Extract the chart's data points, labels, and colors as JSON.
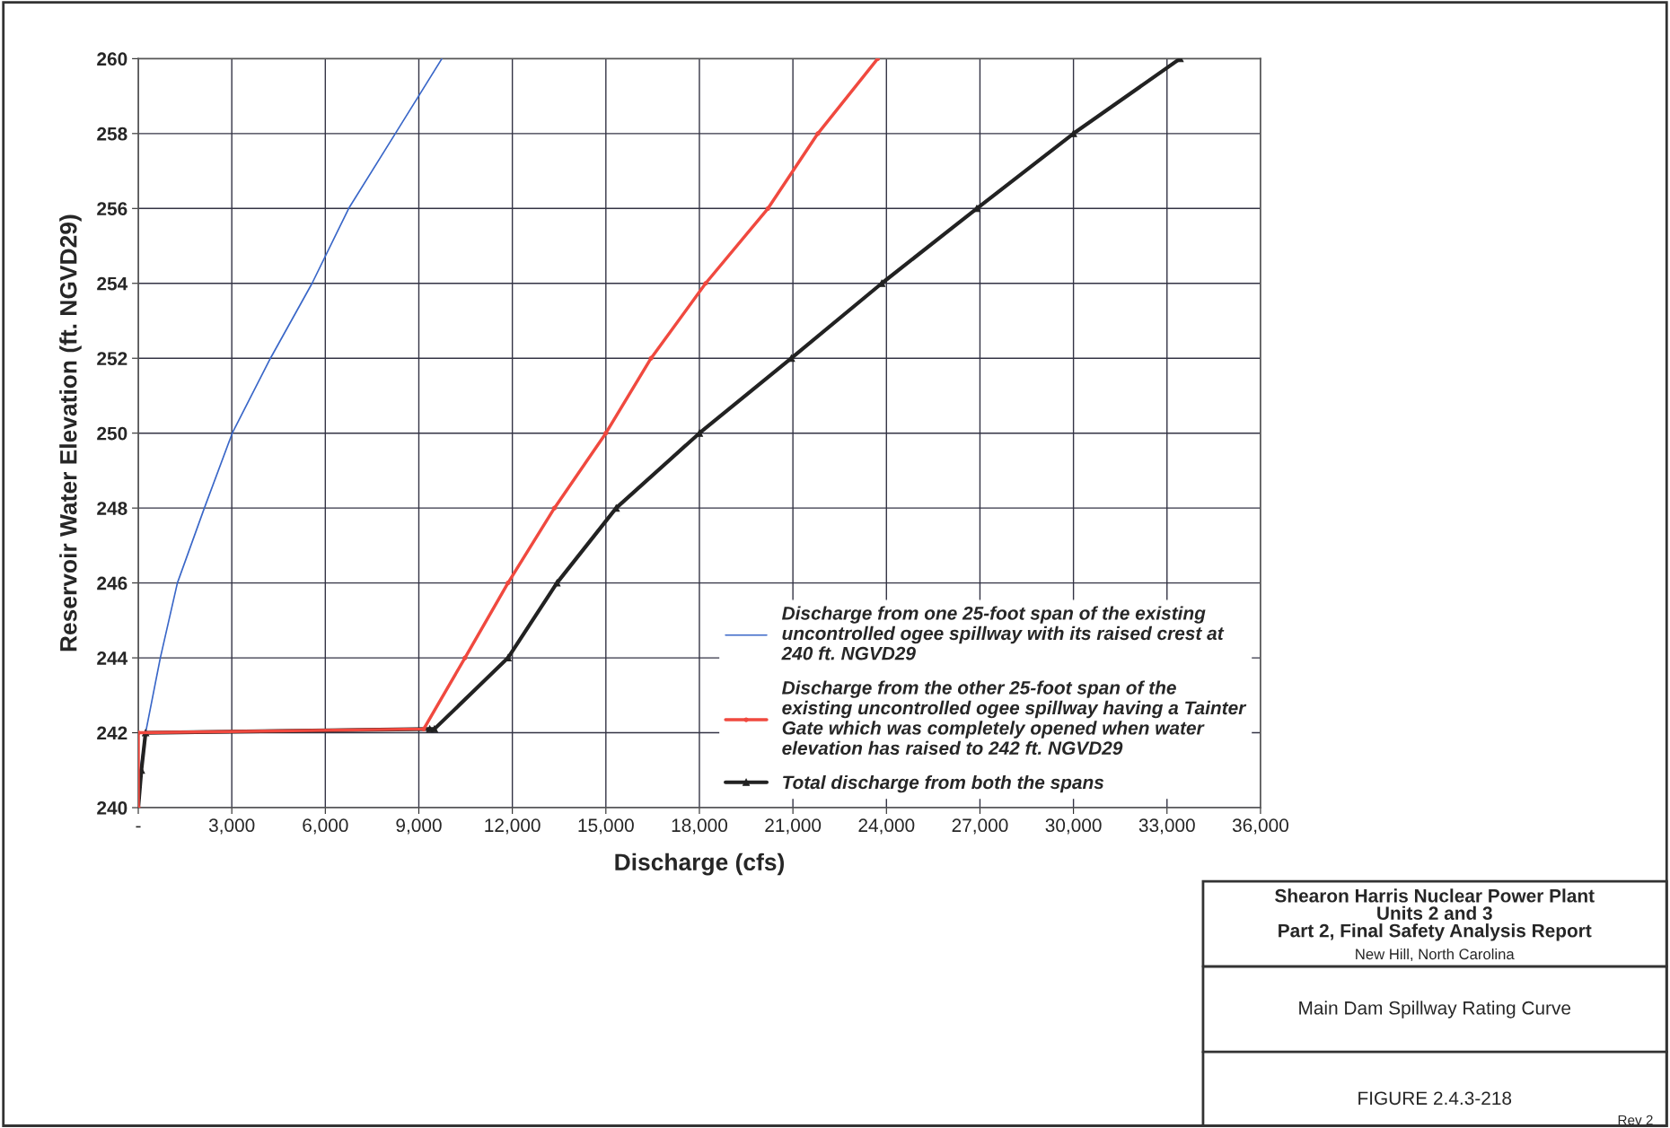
{
  "chart_data": {
    "type": "line",
    "title": "Main Dam Spillway Rating Curve",
    "xlabel": "Discharge (cfs)",
    "ylabel": "Reservoir Water Elevation (ft. NGVD29)",
    "xlim": [
      0,
      36000
    ],
    "ylim": [
      240,
      260
    ],
    "xticks": [
      {
        "value": 0,
        "label": "-"
      },
      {
        "value": 3000,
        "label": "3,000"
      },
      {
        "value": 6000,
        "label": "6,000"
      },
      {
        "value": 9000,
        "label": "9,000"
      },
      {
        "value": 12000,
        "label": "12,000"
      },
      {
        "value": 15000,
        "label": "15,000"
      },
      {
        "value": 18000,
        "label": "18,000"
      },
      {
        "value": 21000,
        "label": "21,000"
      },
      {
        "value": 24000,
        "label": "24,000"
      },
      {
        "value": 27000,
        "label": "27,000"
      },
      {
        "value": 30000,
        "label": "30,000"
      },
      {
        "value": 33000,
        "label": "33,000"
      },
      {
        "value": 36000,
        "label": "36,000"
      }
    ],
    "yticks": [
      240,
      242,
      244,
      246,
      248,
      250,
      252,
      254,
      256,
      258,
      260
    ],
    "grid": true,
    "legend": "bottom right",
    "series": [
      {
        "name": "Discharge from one 25-foot span of the existing\nuncontrolled ogee spillway with its raised crest at\n240 ft. NGVD29",
        "color": "#3a67c8",
        "marker": "none",
        "x": [
          0,
          60,
          235,
          707,
          1255,
          2120,
          3015,
          4240,
          5575,
          6750,
          8245,
          9740
        ],
        "values": [
          240,
          241,
          242,
          244,
          246,
          248,
          250,
          252,
          254,
          256,
          258,
          260
        ]
      },
      {
        "name": "Discharge from the other 25-foot span of the\nexisting uncontrolled ogee spillway having a Tainter\nGate which was completely opened when water\nelevation has raised to 242 ft. NGVD29",
        "color": "#f0493f",
        "marker": "circle",
        "x": [
          0,
          0,
          9157,
          10480,
          11860,
          13350,
          15000,
          16450,
          18200,
          20200,
          21800,
          23720
        ],
        "values": [
          240,
          242,
          242.1,
          244,
          246,
          248,
          250,
          252,
          254,
          256,
          258,
          260
        ]
      },
      {
        "name": "Total discharge from both the spans",
        "color": "#222222",
        "marker": "triangle",
        "x": [
          0,
          100,
          235,
          9350,
          9500,
          11860,
          13430,
          15330,
          18000,
          20950,
          23850,
          26900,
          30000,
          33420
        ],
        "values": [
          240,
          241,
          242,
          242.1,
          242.1,
          244,
          246,
          248,
          250,
          252,
          254,
          256,
          258,
          260
        ]
      }
    ],
    "annotations": [
      "Shearon Harris Nuclear Power Plant\nUnits 2 and 3\nPart 2, Final Safety Analysis Report",
      "New Hill, North Carolina",
      "FIGURE 2.4.3-218",
      "Rev 2"
    ]
  }
}
